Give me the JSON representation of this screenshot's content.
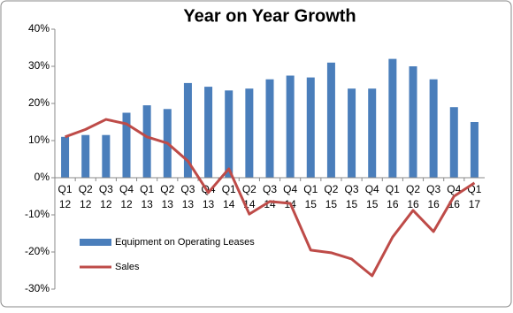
{
  "chart_data": {
    "type": "bar",
    "title": "Year on Year Growth",
    "categories": [
      "Q1 12",
      "Q2 12",
      "Q3 12",
      "Q4 12",
      "Q1 13",
      "Q2 13",
      "Q3 13",
      "Q4 13",
      "Q1 14",
      "Q2 14",
      "Q3 14",
      "Q4 14",
      "Q1 15",
      "Q2 15",
      "Q3 15",
      "Q4 15",
      "Q1 16",
      "Q2 16",
      "Q3 16",
      "Q4 16",
      "Q1 17"
    ],
    "series": [
      {
        "name": "Equipment on Operating Leases",
        "type": "bar",
        "color": "#4a7ebb",
        "values": [
          11,
          11.5,
          11.5,
          17.5,
          19.5,
          18.5,
          25.5,
          24.5,
          23.5,
          24,
          26.5,
          27.5,
          27,
          31,
          24,
          24,
          32,
          30,
          26.5,
          19,
          15
        ]
      },
      {
        "name": "Sales",
        "type": "line",
        "color": "#be4b48",
        "values": [
          11,
          13,
          15.7,
          14.5,
          11,
          9.3,
          4.5,
          -4,
          2.4,
          -9.8,
          -6.4,
          -6.9,
          -19.5,
          -20.2,
          -21.9,
          -26.4,
          -16,
          -8.8,
          -14.5,
          -5,
          -1.4
        ]
      }
    ],
    "ylim": [
      -30,
      40
    ],
    "yticks": [
      {
        "value": -30,
        "label": "-30%"
      },
      {
        "value": -20,
        "label": "-20%"
      },
      {
        "value": -10,
        "label": "-10%"
      },
      {
        "value": 0,
        "label": "0%"
      },
      {
        "value": 10,
        "label": "10%"
      },
      {
        "value": 20,
        "label": "20%"
      },
      {
        "value": 30,
        "label": "30%"
      },
      {
        "value": 40,
        "label": "40%"
      }
    ],
    "grid": false,
    "legend": "lower-left"
  }
}
